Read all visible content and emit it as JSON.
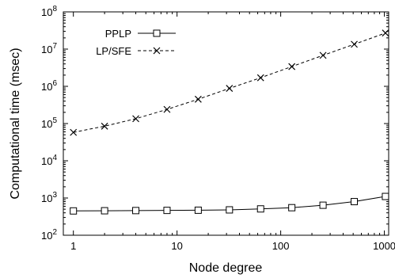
{
  "chart_data": {
    "type": "line",
    "xlabel": "Node degree",
    "ylabel": "Computational time (msec)",
    "x_scale": "log",
    "y_scale": "log",
    "xlim": [
      0.8,
      1100
    ],
    "ylim": [
      100,
      100000000
    ],
    "x_ticks": [
      {
        "value": 1,
        "label": "1"
      },
      {
        "value": 10,
        "label": "10"
      },
      {
        "value": 100,
        "label": "100"
      },
      {
        "value": 1000,
        "label": "1000"
      }
    ],
    "y_ticks": [
      {
        "value": 100,
        "base": "10",
        "exp": "2"
      },
      {
        "value": 1000,
        "base": "10",
        "exp": "3"
      },
      {
        "value": 10000,
        "base": "10",
        "exp": "4"
      },
      {
        "value": 100000,
        "base": "10",
        "exp": "5"
      },
      {
        "value": 1000000,
        "base": "10",
        "exp": "6"
      },
      {
        "value": 10000000,
        "base": "10",
        "exp": "7"
      },
      {
        "value": 100000000,
        "base": "10",
        "exp": "8"
      }
    ],
    "grid": false,
    "legend_position": "top-left",
    "x": [
      1,
      2,
      4,
      8,
      16,
      32,
      64,
      128,
      256,
      512,
      1024
    ],
    "series": [
      {
        "name": "PPLP",
        "marker": "square",
        "line_style": "solid",
        "values": [
          450,
          455,
          460,
          465,
          470,
          480,
          510,
          550,
          640,
          800,
          1100
        ]
      },
      {
        "name": "LP/SFE",
        "marker": "x",
        "line_style": "dashed",
        "values": [
          58000,
          85000,
          135000,
          240000,
          450000,
          880000,
          1700000,
          3400000,
          6800000,
          13500000,
          27000000
        ]
      }
    ]
  }
}
